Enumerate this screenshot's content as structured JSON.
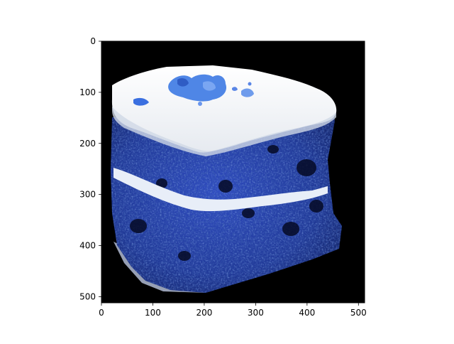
{
  "figure": {
    "background": "#ffffff",
    "image_background": "#000000",
    "axis_color": "#000000"
  },
  "image": {
    "subject": "blue velvet cake slice with white frosting on black background",
    "colors": {
      "frosting": "#f2f4f6",
      "cake_dark": "#1a2a78",
      "cake_mid": "#2a45b0",
      "cake_light": "#4a6ad0",
      "crumb": "#3a6fe0"
    }
  },
  "chart_data": {
    "type": "image",
    "xlim": [
      0,
      512
    ],
    "ylim": [
      512,
      0
    ],
    "xticks": [
      "0",
      "100",
      "200",
      "300",
      "400",
      "500"
    ],
    "yticks": [
      "0",
      "100",
      "200",
      "300",
      "400",
      "500"
    ],
    "xtick_values": [
      0,
      100,
      200,
      300,
      400,
      500
    ],
    "ytick_values": [
      0,
      100,
      200,
      300,
      400,
      500
    ],
    "y_inverted": true,
    "grid": false
  }
}
